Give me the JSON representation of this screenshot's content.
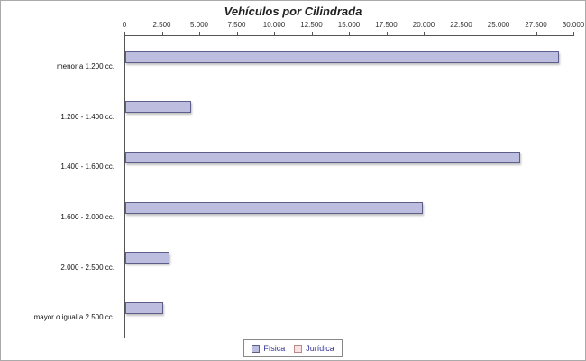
{
  "title": "Vehículos por Cilindrada",
  "chart_data": {
    "type": "bar",
    "orientation": "horizontal",
    "title": "Vehículos por Cilindrada",
    "categories": [
      "menor a 1.200 cc.",
      "1.200 - 1.400 cc.",
      "1.400 - 1.600 cc.",
      "1.600 - 2.000 cc.",
      "2.000 - 2.500 cc.",
      "mayor o igual a 2.500 cc."
    ],
    "series": [
      {
        "name": "Física",
        "values": [
          29000,
          4400,
          26400,
          19900,
          2950,
          2550
        ],
        "fill": "#bdbde0",
        "border": "#5e5e8a"
      },
      {
        "name": "Jurídica",
        "values": [
          0,
          0,
          0,
          0,
          0,
          0
        ],
        "fill": "#f8e2e2",
        "border": "#b98888"
      }
    ],
    "xlim": [
      0,
      30000
    ],
    "x_ticks": [
      0,
      2500,
      5000,
      7500,
      10000,
      12500,
      15000,
      17500,
      20000,
      22500,
      25000,
      27500,
      30000
    ],
    "x_tick_labels": [
      "0",
      "2.500",
      "5.000",
      "7.500",
      "10.000",
      "12.500",
      "15.000",
      "17.500",
      "20.000",
      "22.500",
      "25.000",
      "27.500",
      "30.000"
    ],
    "legend_position": "bottom",
    "grid": false
  }
}
